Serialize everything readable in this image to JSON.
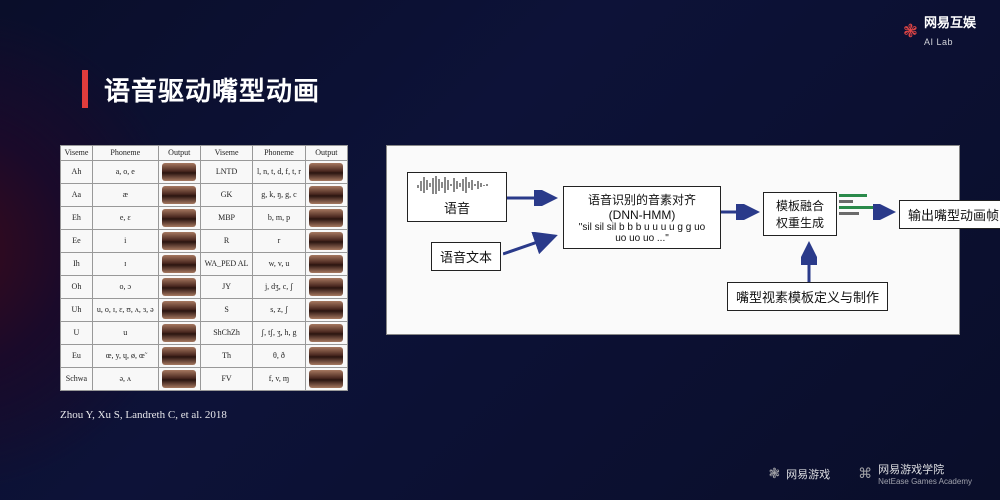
{
  "brand": {
    "name": "网易互娱",
    "sub": "AI Lab",
    "footer1": "网易游戏",
    "footer2": "网易游戏学院",
    "footer2_sub": "NetEase Games Academy"
  },
  "title": "语音驱动嘴型动画",
  "citation": "Zhou Y, Xu S, Landreth C, et al. 2018",
  "viseme_table": {
    "headers": [
      "Viseme",
      "Phoneme",
      "Output",
      "Viseme",
      "Phoneme",
      "Output"
    ],
    "rows": [
      [
        "Ah",
        "a, o, e",
        "",
        "LNTD",
        "l, n, t, d, f, t, r",
        ""
      ],
      [
        "Aa",
        "æ",
        "",
        "GK",
        "g, k, ŋ, g, c",
        ""
      ],
      [
        "Eh",
        "e, ε",
        "",
        "MBP",
        "b, m, p",
        ""
      ],
      [
        "Ee",
        "i",
        "",
        "R",
        "r",
        ""
      ],
      [
        "Ih",
        "ɪ",
        "",
        "WA_PED AL",
        "w, v, u",
        ""
      ],
      [
        "Oh",
        "o, ɔ",
        "",
        "JY",
        "j, dʒ, c, ʃ",
        ""
      ],
      [
        "Uh",
        "u, o, ɪ, ɛ, ʊ, ʌ, ɜ, ə",
        "",
        "S",
        "s, z, ʃ",
        ""
      ],
      [
        "U",
        "u",
        "",
        "ShChZh",
        "ʃ, tʃ, ʒ, h, g",
        ""
      ],
      [
        "Eu",
        "œ, y, ɥ, ø, œ̃",
        "",
        "Th",
        "θ, ð",
        ""
      ],
      [
        "Schwa",
        "ə, ʌ",
        "",
        "FV",
        "f, v, ɱ",
        ""
      ]
    ]
  },
  "flow": {
    "audio_label": "语音",
    "text_label": "语音文本",
    "align_title": "语音识别的音素对齐",
    "align_sub1": "(DNN-HMM)",
    "align_sub2": "\"sil sil sil b b b u u u u g g uo uo uo uo ...\"",
    "fusion_l1": "模板融合",
    "fusion_l2": "权重生成",
    "template_def": "嘴型视素模板定义与制作",
    "output": "输出嘴型动画帧",
    "bars": [
      {
        "w": 28,
        "c": "#2a8a4a"
      },
      {
        "w": 14,
        "c": "#6a6a6a"
      },
      {
        "w": 36,
        "c": "#2a8a4a"
      },
      {
        "w": 20,
        "c": "#6a6a6a"
      }
    ],
    "arrow_color": "#2a3a8a",
    "box_border": "#222"
  },
  "colors": {
    "accent": "#e03c3c",
    "bg_panel": "#fafafa"
  }
}
